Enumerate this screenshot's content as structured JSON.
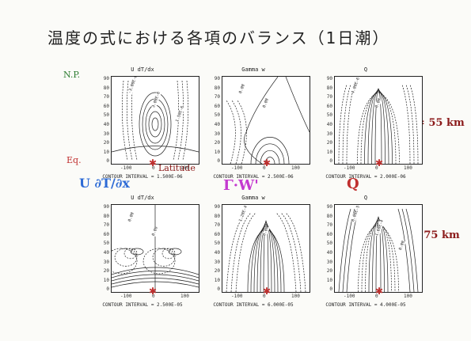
{
  "page": {
    "title": "温度の式における各項のバランス（1日潮）",
    "labels": {
      "np": "N.P.",
      "eq": "Eq.",
      "latitude": "Latitude",
      "z55": "z = 55 km",
      "z75": "z = 75 km",
      "term_u": "U ∂T/∂x",
      "term_gw": "Γ·W'",
      "term_q": "Q"
    },
    "y_ticks": [
      "90",
      "80",
      "70",
      "60",
      "50",
      "40",
      "30",
      "20",
      "10",
      "0"
    ],
    "x_ticks": [
      "-100",
      "0",
      "100"
    ],
    "colors": {
      "handwriting_red": "#8b1a1a",
      "ink_blue": "#2d6bd6",
      "ink_magenta": "#c43ad0",
      "ink_red": "#c0302f",
      "ink_green": "#2e7d32"
    }
  },
  "panels": [
    {
      "title": "U  dT/dx",
      "interval": "CONTOUR INTERVAL = 1.500E-06",
      "contour_labels": [
        "-3.00E-6",
        "3.00E-6",
        "1.50E-6"
      ]
    },
    {
      "title": "Gamma  w",
      "interval": "CONTOUR INTERVAL = 2.500E-06",
      "contour_labels": [
        "0.00",
        "0.00"
      ]
    },
    {
      "title": "Q",
      "interval": "CONTOUR INTERVAL = 2.000E-06",
      "contour_labels": [
        "4.00E-6",
        "0.00"
      ]
    },
    {
      "title": "U  dT/dx",
      "interval": "CONTOUR INTERVAL = 2.500E-05",
      "contour_labels": [
        "0.00",
        "0.00"
      ]
    },
    {
      "title": "Gamma  w",
      "interval": "CONTOUR INTERVAL = 6.000E-05",
      "contour_labels": [
        "1.20E-4",
        "0.00"
      ]
    },
    {
      "title": "Q",
      "interval": "CONTOUR INTERVAL = 4.000E-05",
      "contour_labels": [
        "8.00E-5",
        "1.60E-4",
        "0.00"
      ]
    }
  ]
}
